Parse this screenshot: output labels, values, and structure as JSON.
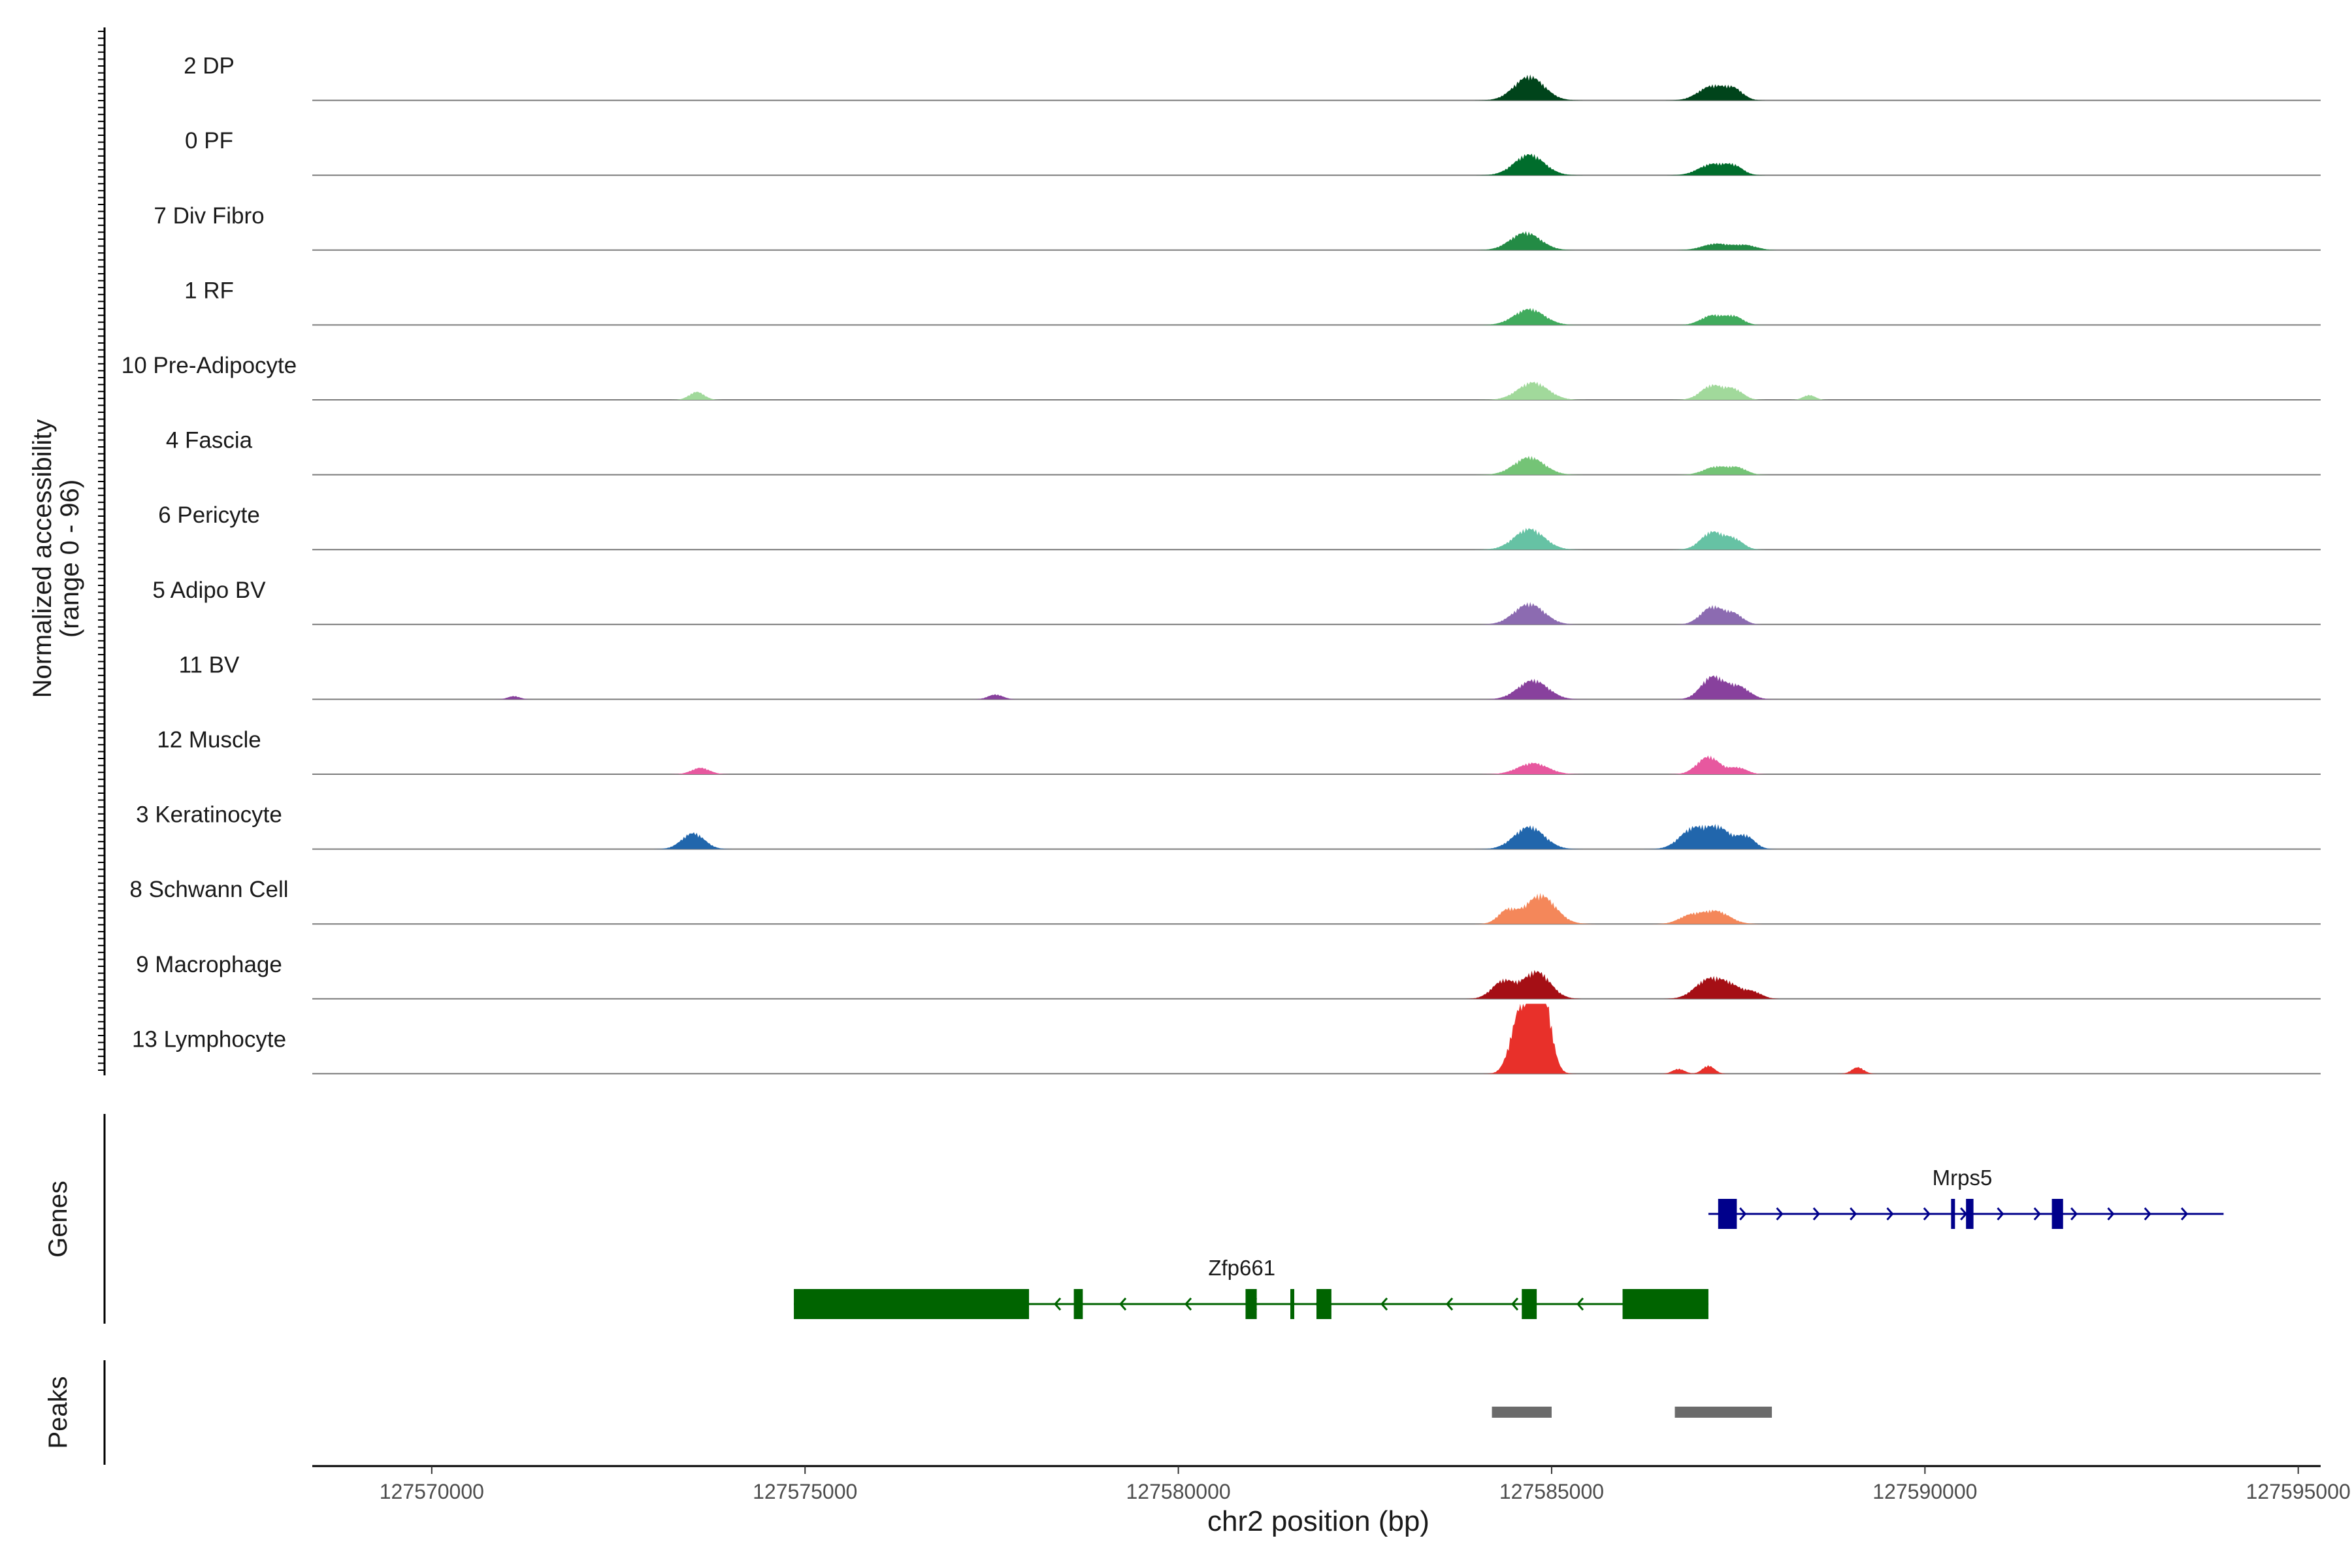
{
  "chart_data": {
    "type": "area",
    "chromosome": "chr2",
    "xlabel": "chr2 position (bp)",
    "xlim": [
      127568400,
      127595300
    ],
    "xticks": [
      127570000,
      127575000,
      127580000,
      127585000,
      127590000,
      127595000
    ],
    "xtick_labels": [
      "127570000",
      "127575000",
      "127580000",
      "127585000",
      "127590000",
      "127595000"
    ],
    "ylabel_line1": "Normalized accessibility",
    "ylabel_line2": "(range 0 - 96)",
    "yrange": [
      0,
      96
    ],
    "genes_label": "Genes",
    "peaks_label": "Peaks",
    "tracks": [
      {
        "name": "2 DP",
        "color": "#00441b",
        "peaks": [
          [
            127584700,
            15,
            200
          ],
          [
            127587150,
            9,
            180
          ],
          [
            127587450,
            6,
            120
          ]
        ]
      },
      {
        "name": "0 PF",
        "color": "#006d2c",
        "peaks": [
          [
            127584700,
            13,
            200
          ],
          [
            127587150,
            7,
            180
          ],
          [
            127587450,
            5,
            120
          ]
        ]
      },
      {
        "name": "7 Div Fibro",
        "color": "#238b45",
        "peaks": [
          [
            127584650,
            11,
            200
          ],
          [
            127587200,
            4,
            180
          ],
          [
            127587600,
            3,
            150
          ]
        ]
      },
      {
        "name": "1 RF",
        "color": "#41ab5d",
        "peaks": [
          [
            127584700,
            10,
            200
          ],
          [
            127587150,
            6,
            150
          ],
          [
            127587450,
            5,
            120
          ]
        ]
      },
      {
        "name": "10 Pre-Adipocyte",
        "color": "#a1d99b",
        "peaks": [
          [
            127584750,
            11,
            200
          ],
          [
            127587150,
            9,
            150
          ],
          [
            127587450,
            6,
            120
          ],
          [
            127573550,
            5,
            100
          ],
          [
            127588450,
            3,
            80
          ]
        ]
      },
      {
        "name": "4 Fascia",
        "color": "#74c476",
        "peaks": [
          [
            127584700,
            11,
            200
          ],
          [
            127587200,
            5,
            160
          ],
          [
            127587500,
            4,
            120
          ]
        ]
      },
      {
        "name": "6 Pericyte",
        "color": "#66c2a4",
        "peaks": [
          [
            127584700,
            13,
            200
          ],
          [
            127587150,
            11,
            150
          ],
          [
            127587450,
            6,
            120
          ]
        ]
      },
      {
        "name": "5 Adipo BV",
        "color": "#8c6bb1",
        "peaks": [
          [
            127584700,
            13,
            200
          ],
          [
            127587150,
            11,
            150
          ],
          [
            127587450,
            6,
            120
          ]
        ]
      },
      {
        "name": "11 BV",
        "color": "#88419d",
        "peaks": [
          [
            127584750,
            12,
            200
          ],
          [
            127587150,
            14,
            150
          ],
          [
            127587500,
            8,
            150
          ],
          [
            127577550,
            3,
            100
          ],
          [
            127571100,
            2,
            80
          ]
        ]
      },
      {
        "name": "12 Muscle",
        "color": "#e7589f",
        "peaks": [
          [
            127584750,
            7,
            200
          ],
          [
            127587100,
            11,
            150
          ],
          [
            127573600,
            4,
            120
          ],
          [
            127587500,
            4,
            120
          ]
        ]
      },
      {
        "name": "3 Keratinocyte",
        "color": "#2166ac",
        "peaks": [
          [
            127584700,
            14,
            200
          ],
          [
            127586900,
            13,
            180
          ],
          [
            127587250,
            12,
            150
          ],
          [
            127573500,
            10,
            150
          ],
          [
            127587600,
            8,
            120
          ]
        ]
      },
      {
        "name": "8 Schwann Cell",
        "color": "#f4875a",
        "peaks": [
          [
            127584850,
            18,
            200
          ],
          [
            127584400,
            8,
            120
          ],
          [
            127587200,
            8,
            180
          ],
          [
            127586850,
            5,
            150
          ]
        ]
      },
      {
        "name": "9 Macrophage",
        "color": "#a50f15",
        "peaks": [
          [
            127584800,
            17,
            180
          ],
          [
            127584350,
            11,
            150
          ],
          [
            127587100,
            12,
            180
          ],
          [
            127587400,
            7,
            150
          ],
          [
            127587700,
            4,
            120
          ]
        ]
      },
      {
        "name": "13 Lymphocyte",
        "color": "#e8302a",
        "peaks": [
          [
            127584750,
            40,
            150
          ],
          [
            127584550,
            24,
            120
          ],
          [
            127584900,
            30,
            100
          ],
          [
            127587100,
            5,
            80
          ],
          [
            127589100,
            4,
            80
          ],
          [
            127586700,
            3,
            80
          ]
        ]
      }
    ],
    "genes": [
      {
        "name": "Mrps5",
        "strand": "+",
        "color": "#00008b",
        "start": 127587100,
        "end": 127594000,
        "exons": [
          [
            127587230,
            127587480
          ],
          [
            127590350,
            127590380
          ],
          [
            127590550,
            127590650
          ],
          [
            127591700,
            127591850
          ]
        ]
      },
      {
        "name": "Zfp661",
        "strand": "-",
        "color": "#006400",
        "start": 127574850,
        "end": 127587100,
        "exons": [
          [
            127574850,
            127578000
          ],
          [
            127578600,
            127578720
          ],
          [
            127580900,
            127581050
          ],
          [
            127581500,
            127581540
          ],
          [
            127581850,
            127582050
          ],
          [
            127584600,
            127584800
          ],
          [
            127585950,
            127587100
          ]
        ]
      }
    ],
    "peak_regions": [
      [
        127584200,
        127585000
      ],
      [
        127586650,
        127587950
      ]
    ]
  }
}
